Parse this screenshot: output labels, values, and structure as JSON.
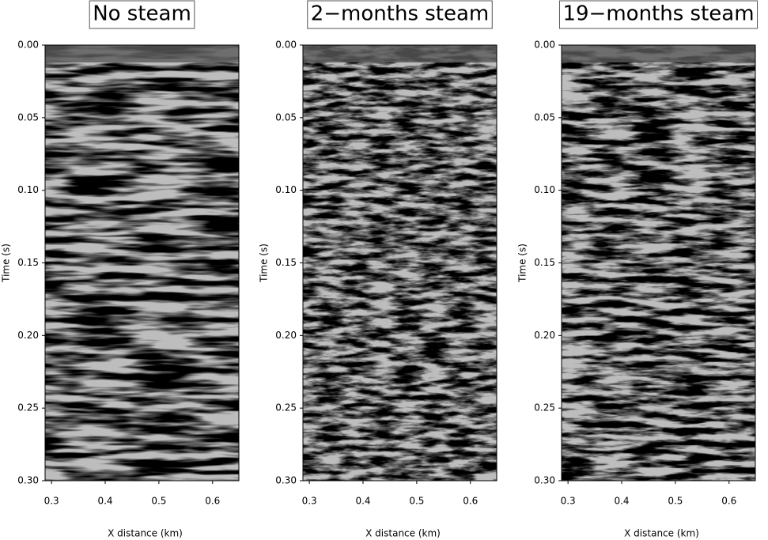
{
  "chart_data": [
    {
      "type": "image",
      "title": "No steam",
      "xlabel": "X distance (km)",
      "ylabel": "Time (s)",
      "xlim": [
        0.288,
        0.649
      ],
      "ylim": [
        0.3,
        0.0
      ],
      "xticks": [
        0.3,
        0.4,
        0.5,
        0.6
      ],
      "yticks": [
        {
          "value": 0,
          "label": "0.00"
        },
        0.05,
        {
          "value": 0.1,
          "label": "0.10"
        },
        0.15,
        {
          "value": 0.2,
          "label": "0.20"
        },
        0.25,
        {
          "value": 0.3,
          "label": "0.30"
        }
      ]
    },
    {
      "type": "image",
      "title": "2−months steam",
      "xlabel": "X distance (km)",
      "ylabel": "Time (s)",
      "xlim": [
        0.288,
        0.649
      ],
      "ylim": [
        0.3,
        0.0
      ],
      "xticks": [
        0.3,
        0.4,
        0.5,
        0.6
      ],
      "yticks": [
        {
          "value": 0,
          "label": "0.00"
        },
        0.05,
        {
          "value": 0.1,
          "label": "0.10"
        },
        0.15,
        {
          "value": 0.2,
          "label": "0.20"
        },
        0.25,
        {
          "value": 0.3,
          "label": "0.30"
        }
      ]
    },
    {
      "type": "image",
      "title": "19−months steam",
      "xlabel": "X distance (km)",
      "ylabel": "Time (s)",
      "xlim": [
        0.288,
        0.649
      ],
      "ylim": [
        0.3,
        0.0
      ],
      "xticks": [
        0.3,
        0.4,
        0.5,
        0.6
      ],
      "yticks": [
        {
          "value": 0,
          "label": "0.00"
        },
        0.05,
        {
          "value": 0.1,
          "label": "0.10"
        },
        0.15,
        {
          "value": 0.2,
          "label": "0.20"
        },
        0.25,
        {
          "value": 0.3,
          "label": "0.30"
        }
      ]
    }
  ]
}
